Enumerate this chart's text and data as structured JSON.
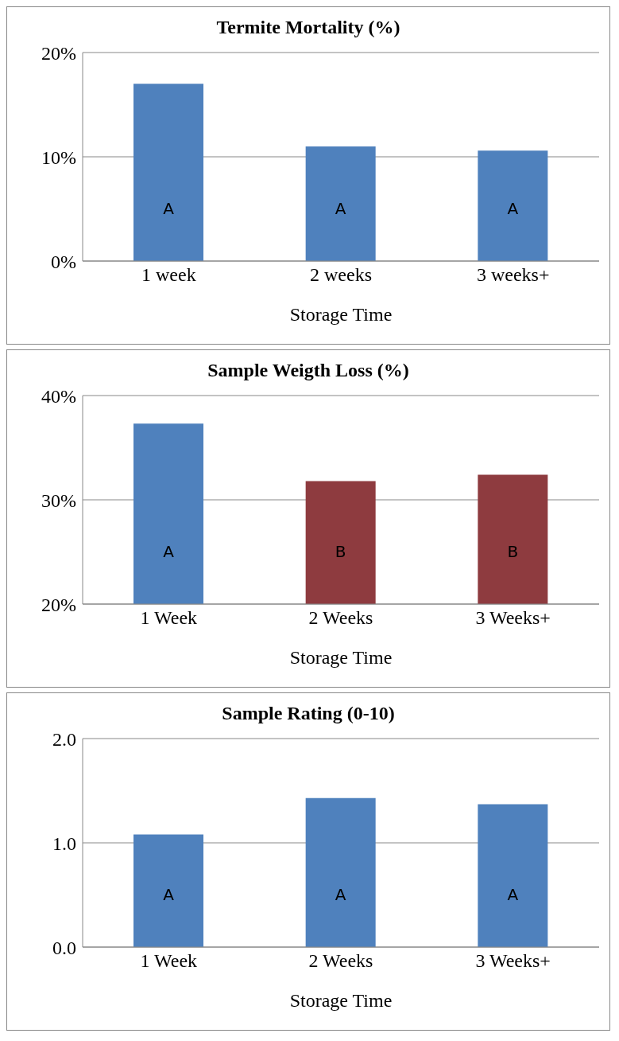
{
  "chart_data": [
    {
      "type": "bar",
      "title": "Termite Mortality (%)",
      "xlabel": "Storage Time",
      "categories": [
        "1 week",
        "2 weeks",
        "3 weeks+"
      ],
      "values": [
        17.0,
        11.0,
        10.6
      ],
      "color": "#4f81bd",
      "ylim": [
        0,
        20
      ],
      "yticks": [
        {
          "value": 0,
          "label": "0%"
        },
        {
          "value": 10,
          "label": "10%"
        },
        {
          "value": 20,
          "label": "20%"
        }
      ],
      "grid": "y",
      "annotations": [
        "A",
        "A",
        "A"
      ]
    },
    {
      "type": "bar",
      "title": "Sample Weigth Loss (%)",
      "xlabel": "Storage Time",
      "categories": [
        "1 Week",
        "2 Weeks",
        "3 Weeks+"
      ],
      "values": [
        37.3,
        31.8,
        32.4
      ],
      "colors": [
        "#4f81bd",
        "#8e3b3f",
        "#8e3b3f"
      ],
      "ylim": [
        20,
        40
      ],
      "yticks": [
        {
          "value": 20,
          "label": "20%"
        },
        {
          "value": 30,
          "label": "30%"
        },
        {
          "value": 40,
          "label": "40%"
        }
      ],
      "grid": "y",
      "annotations": [
        "A",
        "B",
        "B"
      ]
    },
    {
      "type": "bar",
      "title": "Sample Rating (0-10)",
      "xlabel": "Storage Time",
      "categories": [
        "1 Week",
        "2 Weeks",
        "3 Weeks+"
      ],
      "values": [
        1.08,
        1.43,
        1.37
      ],
      "color": "#4f81bd",
      "ylim": [
        0,
        2
      ],
      "yticks": [
        {
          "value": 0,
          "label": "0.0"
        },
        {
          "value": 1,
          "label": "1.0"
        },
        {
          "value": 2,
          "label": "2.0"
        }
      ],
      "grid": "y",
      "annotations": [
        "A",
        "A",
        "A"
      ]
    }
  ]
}
